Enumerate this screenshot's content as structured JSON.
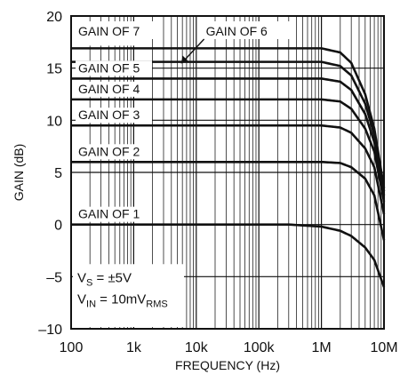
{
  "chart_data": {
    "type": "line",
    "title": "",
    "xlabel": "FREQUENCY (Hz)",
    "ylabel": "GAIN (dB)",
    "x_scale": "log",
    "xlim": [
      100,
      10000000
    ],
    "ylim": [
      -10,
      20
    ],
    "grid": true,
    "x_ticks": [
      {
        "value": 100,
        "label": "100"
      },
      {
        "value": 1000,
        "label": "1k"
      },
      {
        "value": 10000,
        "label": "10k"
      },
      {
        "value": 100000,
        "label": "100k"
      },
      {
        "value": 1000000,
        "label": "1M"
      },
      {
        "value": 10000000,
        "label": "10M"
      }
    ],
    "y_ticks": [
      {
        "value": 20,
        "label": "20"
      },
      {
        "value": 15,
        "label": "15"
      },
      {
        "value": 10,
        "label": "10"
      },
      {
        "value": 5,
        "label": "5"
      },
      {
        "value": 0,
        "label": "0"
      },
      {
        "value": -5,
        "label": "–5"
      },
      {
        "value": -10,
        "label": "–10"
      }
    ],
    "series": [
      {
        "name": "GAIN OF 7",
        "x": [
          100,
          1000000,
          2000000,
          3000000,
          5000000,
          7000000,
          10000000
        ],
        "y": [
          16.9,
          16.9,
          16.5,
          15.5,
          12.5,
          9.2,
          3.5
        ]
      },
      {
        "name": "GAIN OF 6",
        "x": [
          100,
          1000000,
          2000000,
          3000000,
          5000000,
          7000000,
          10000000
        ],
        "y": [
          15.6,
          15.6,
          15.2,
          14.3,
          11.6,
          8.6,
          3.2
        ]
      },
      {
        "name": "GAIN OF 5",
        "x": [
          100,
          1000000,
          2000000,
          3000000,
          5000000,
          7000000,
          10000000
        ],
        "y": [
          14.0,
          14.0,
          13.7,
          12.9,
          10.6,
          7.9,
          2.8
        ]
      },
      {
        "name": "GAIN OF 4",
        "x": [
          100,
          1000000,
          2000000,
          3000000,
          5000000,
          7000000,
          10000000
        ],
        "y": [
          12.0,
          12.0,
          11.8,
          11.1,
          9.2,
          7.0,
          2.2
        ]
      },
      {
        "name": "GAIN OF 3",
        "x": [
          100,
          1000000,
          2000000,
          3000000,
          5000000,
          7000000,
          10000000
        ],
        "y": [
          9.5,
          9.5,
          9.3,
          8.8,
          7.3,
          5.5,
          1.0
        ]
      },
      {
        "name": "GAIN OF 2",
        "x": [
          100,
          1000000,
          2000000,
          3000000,
          5000000,
          7000000,
          10000000
        ],
        "y": [
          6.0,
          6.0,
          5.9,
          5.5,
          4.4,
          2.8,
          -1.5
        ]
      },
      {
        "name": "GAIN OF 1",
        "x": [
          100,
          300000,
          1000000,
          2000000,
          3000000,
          5000000,
          7000000,
          10000000
        ],
        "y": [
          0,
          0,
          -0.2,
          -0.6,
          -1.1,
          -2.2,
          -3.4,
          -6.0
        ]
      }
    ],
    "annotation": {
      "vs_sub": "S",
      "vs_value": " = ±5V",
      "vin_sub": "IN",
      "vin_value": " = 10mV",
      "vin_value_sub": "RMS"
    }
  }
}
